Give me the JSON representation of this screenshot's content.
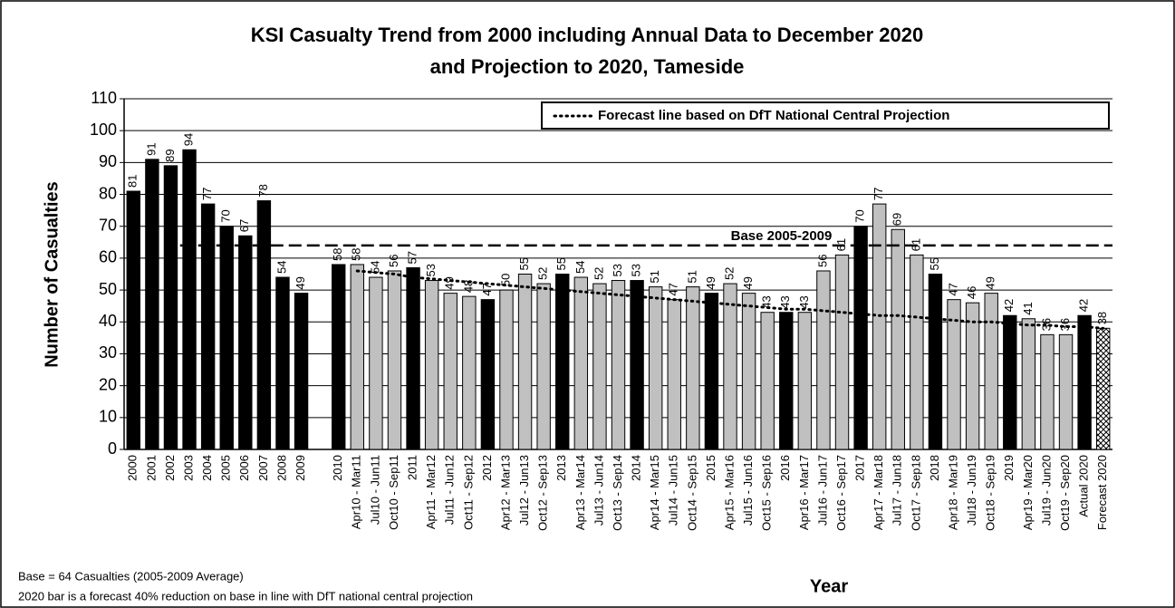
{
  "chart_data": {
    "type": "bar",
    "title": [
      "KSI Casualty Trend from 2000 including Annual Data to December 2020",
      "and Projection to 2020, Tameside"
    ],
    "y_label": "Number of Casualties",
    "x_label": "Year",
    "notes": [
      "Base = 64 Casualties (2005-2009 Average)",
      "2020 bar is a forecast 40% reduction on base in line with DfT national central projection"
    ],
    "categories": [
      "2000",
      "2001",
      "2002",
      "2003",
      "2004",
      "2005",
      "2006",
      "2007",
      "2008",
      "2009",
      null,
      "2010",
      "Apr10 - Mar11",
      "Jul10 - Jun11",
      "Oct10 - Sep11",
      "2011",
      "Apr11 - Mar12",
      "Jul11 - Jun12",
      "Oct11 - Sep12",
      "2012",
      "Apr12 - Mar13",
      "Jul12 - Jun13",
      "Oct12 - Sep13",
      "2013",
      "Apr13 - Mar14",
      "Jul13 - Jun14",
      "Oct13 - Sep14",
      "2014",
      "Apr14 - Mar15",
      "Jul14 - Jun15",
      "Oct14 - Sep15",
      "2015",
      "Apr15 - Mar16",
      "Jul15 - Jun16",
      "Oct15 - Sep16",
      "2016",
      "Apr16 - Mar17",
      "Jul16 - Jun17",
      "Oct16 - Sep17",
      "2017",
      "Apr17 - Mar18",
      "Jul17 - Jun18",
      "Oct17 - Sep18",
      "2018",
      "Apr18 - Mar19",
      "Jul18 - Jun19",
      "Oct18 - Sep19",
      "2019",
      "Apr19 - Mar20",
      "Jul19 - Jun20",
      "Oct19 - Sep20",
      "Actual 2020",
      "Forecast 2020"
    ],
    "values": [
      81,
      91,
      89,
      94,
      77,
      70,
      67,
      78,
      54,
      49,
      null,
      58,
      58,
      54,
      56,
      57,
      53,
      49,
      48,
      47,
      50,
      55,
      52,
      55,
      54,
      52,
      53,
      53,
      51,
      47,
      51,
      49,
      52,
      49,
      43,
      43,
      43,
      56,
      61,
      70,
      77,
      69,
      61,
      55,
      47,
      46,
      49,
      42,
      41,
      36,
      36,
      42,
      38
    ],
    "colors": [
      "#000000",
      "#000000",
      "#000000",
      "#000000",
      "#000000",
      "#000000",
      "#000000",
      "#000000",
      "#000000",
      "#000000",
      null,
      "#000000",
      "#c0c0c0",
      "#c0c0c0",
      "#c0c0c0",
      "#000000",
      "#c0c0c0",
      "#c0c0c0",
      "#c0c0c0",
      "#000000",
      "#c0c0c0",
      "#c0c0c0",
      "#c0c0c0",
      "#000000",
      "#c0c0c0",
      "#c0c0c0",
      "#c0c0c0",
      "#000000",
      "#c0c0c0",
      "#c0c0c0",
      "#c0c0c0",
      "#000000",
      "#c0c0c0",
      "#c0c0c0",
      "#c0c0c0",
      "#000000",
      "#c0c0c0",
      "#c0c0c0",
      "#c0c0c0",
      "#000000",
      "#c0c0c0",
      "#c0c0c0",
      "#c0c0c0",
      "#000000",
      "#c0c0c0",
      "#c0c0c0",
      "#c0c0c0",
      "#000000",
      "#c0c0c0",
      "#c0c0c0",
      "#c0c0c0",
      "#000000",
      "crosshatch"
    ],
    "lines": [
      {
        "name": "Forecast line based on DfT National Central Projection",
        "color": "#000000",
        "style": "dotted",
        "values": [
          null,
          null,
          null,
          null,
          null,
          null,
          null,
          null,
          null,
          null,
          null,
          null,
          56,
          55.5,
          55,
          54,
          53.5,
          53,
          52.5,
          52,
          51.5,
          51,
          50.5,
          50,
          49.5,
          49,
          48.5,
          48,
          47.5,
          47,
          46.5,
          46,
          45.5,
          45,
          44.5,
          44,
          44,
          43.5,
          43,
          42.5,
          42,
          42,
          41.5,
          41,
          40.5,
          40,
          40,
          39.5,
          39,
          39,
          38.5,
          38.5,
          38
        ]
      }
    ],
    "reference_lines": [
      {
        "value": 64,
        "label": "Base 2005-2009",
        "style": "dashed"
      }
    ],
    "ylim": [
      0,
      110
    ],
    "yticks": [
      0,
      10,
      20,
      30,
      40,
      50,
      60,
      70,
      80,
      90,
      100,
      110
    ],
    "grid": true,
    "legend": "top-right"
  }
}
